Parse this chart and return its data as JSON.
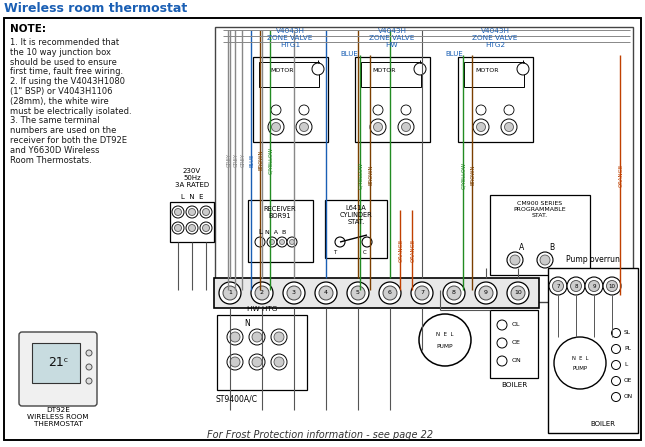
{
  "title": "Wireless room thermostat",
  "bg": "#ffffff",
  "c_black": "#000000",
  "c_blue": "#1a5fb4",
  "c_orange": "#c04000",
  "c_grey": "#888888",
  "c_brown": "#7B3F00",
  "c_gyellow": "#228B22",
  "c_darkgrey": "#555555",
  "note_title": "NOTE:",
  "note_lines": [
    "1. It is recommended that",
    "the 10 way junction box",
    "should be used to ensure",
    "first time, fault free wiring.",
    "2. If using the V4043H1080",
    "(1\" BSP) or V4043H1106",
    "(28mm), the white wire",
    "must be electrically isolated.",
    "3. The same terminal",
    "numbers are used on the",
    "receiver for both the DT92E",
    "and Y6630D Wireless",
    "Room Thermostats."
  ],
  "frost_text": "For Frost Protection information - see page 22",
  "dt92e_text": "DT92E\nWIRELESS ROOM\nTHERMOSTAT",
  "st9400_text": "ST9400A/C",
  "mains_text": "230V\n50Hz\n3A RATED",
  "lne_text": "L  N  E",
  "hwhtg_text": "HW HTG",
  "pump_overrun_text": "Pump overrun",
  "boiler_text": "BOILER",
  "zone_labels": [
    "V4043H\nZONE VALVE\nHTG1",
    "V4043H\nZONE VALVE\nHW",
    "V4043H\nZONE VALVE\nHTG2"
  ],
  "receiver_text": "RECEIVER\nBOR91",
  "l641a_text": "L641A\nCYLINDER\nSTAT.",
  "cm900_text": "CM900 SERIES\nPROGRAMMABLE\nSTAT.",
  "ol_oe_on_text": "OL\nOE\nON"
}
